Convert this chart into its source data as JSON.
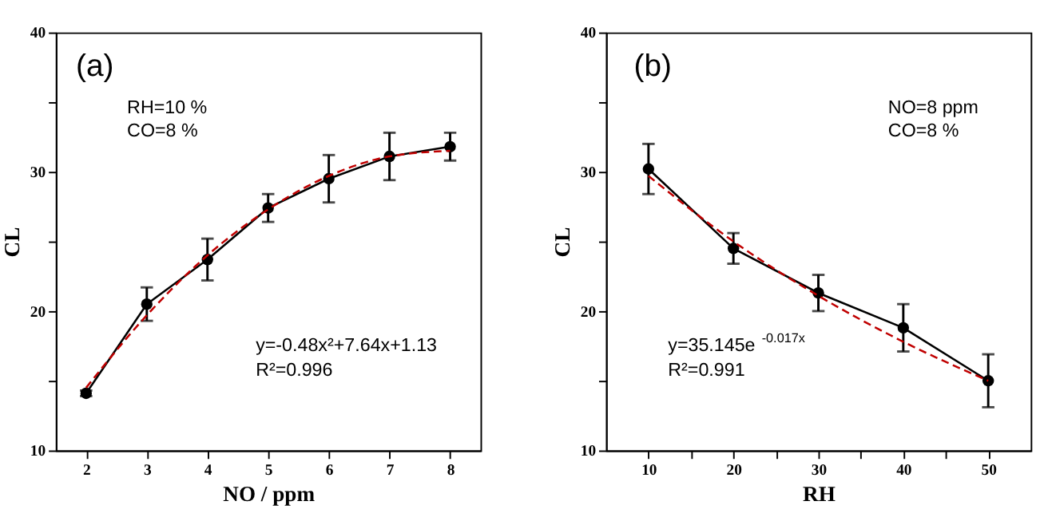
{
  "chart_data": [
    {
      "type": "line",
      "xlabel": "NO / ppm",
      "ylabel": "CL",
      "x": [
        2,
        3,
        4,
        5,
        6,
        7,
        8
      ],
      "xlim": [
        1.5,
        8.5
      ],
      "xticks": [
        2,
        3,
        4,
        5,
        6,
        7,
        8
      ],
      "ylim": [
        10,
        40
      ],
      "yticks": [
        10,
        {
          "value": 15,
          "label": null
        },
        20,
        {
          "value": 25,
          "label": null
        },
        30,
        {
          "value": 35,
          "label": null
        },
        40
      ],
      "grid": false,
      "legend": false,
      "series": [
        {
          "color": "#000000",
          "marker": "circle",
          "line_style": "solid",
          "values": [
            14.1,
            20.5,
            23.7,
            27.4,
            29.5,
            31.1,
            31.8
          ],
          "errors": [
            0.2,
            1.2,
            1.5,
            1.0,
            1.7,
            1.7,
            1.0
          ]
        },
        {
          "color": "#c00000",
          "marker": "none",
          "line_style": "dashed",
          "values": [
            14.5,
            19.7,
            24.0,
            27.3,
            29.7,
            31.1,
            31.5
          ]
        }
      ],
      "annotations": [
        "(a)",
        "RH=10 %",
        "CO=8 %",
        "y=-0.48x²+7.64x+1.13",
        "R²=0.996"
      ]
    },
    {
      "type": "line",
      "xlabel": "RH",
      "ylabel": "CL",
      "x": [
        10,
        20,
        30,
        40,
        50
      ],
      "xlim": [
        5,
        55
      ],
      "xticks": [
        10,
        {
          "value": 15,
          "label": null
        },
        20,
        {
          "value": 25,
          "label": null
        },
        30,
        {
          "value": 35,
          "label": null
        },
        40,
        {
          "value": 45,
          "label": null
        },
        50
      ],
      "ylim": [
        10,
        40
      ],
      "yticks": [
        10,
        {
          "value": 15,
          "label": null
        },
        20,
        {
          "value": 25,
          "label": null
        },
        30,
        {
          "value": 35,
          "label": null
        },
        40
      ],
      "grid": false,
      "legend": false,
      "series": [
        {
          "color": "#000000",
          "marker": "circle",
          "line_style": "solid",
          "values": [
            30.2,
            24.5,
            21.3,
            18.8,
            15.0
          ],
          "errors": [
            1.8,
            1.1,
            1.3,
            1.7,
            1.9
          ]
        },
        {
          "color": "#c00000",
          "marker": "none",
          "line_style": "dashed",
          "values": [
            29.7,
            25.0,
            21.1,
            17.8,
            15.0
          ]
        }
      ],
      "annotations": [
        "(b)",
        "NO=8 ppm",
        "CO=8 %",
        "y=35.145e$^{-0.017x}$",
        "R²=0.991"
      ]
    }
  ]
}
